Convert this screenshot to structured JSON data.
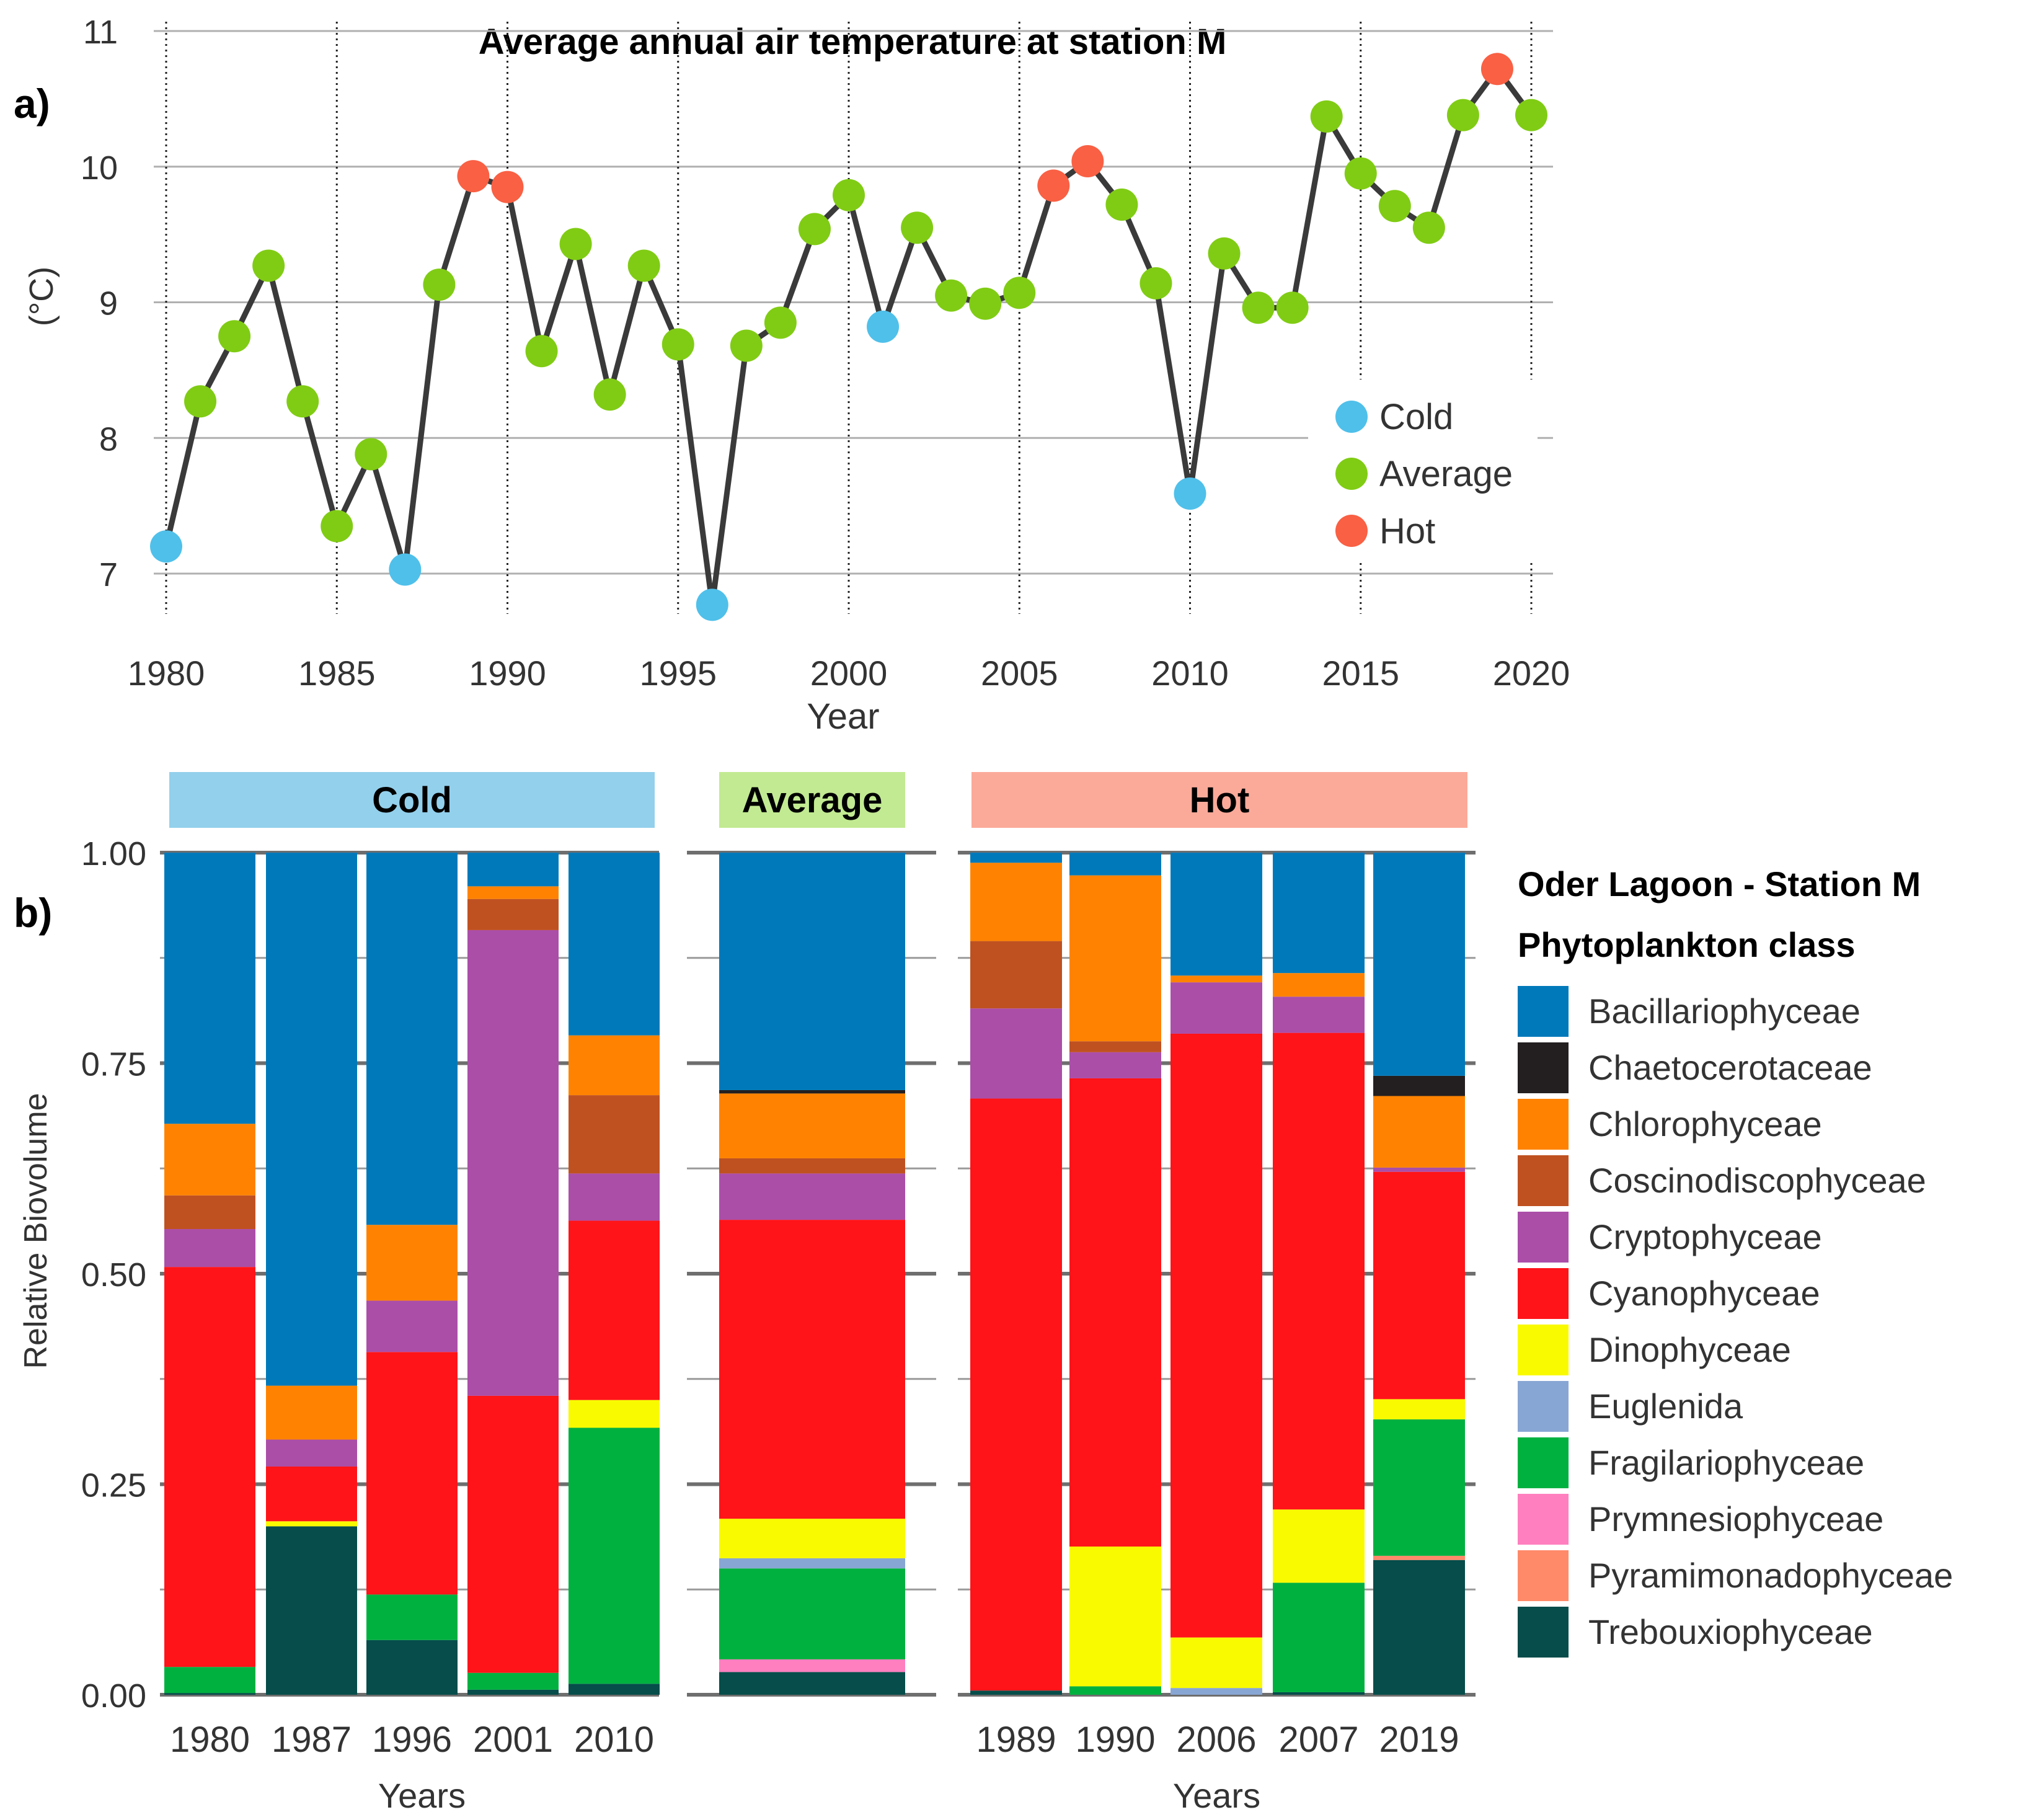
{
  "colors": {
    "Cold": "#4fc0ea",
    "Average": "#80cc14",
    "Hot": "#f96044",
    "line": "#3a3a3a",
    "grid": "#b0b0b0",
    "strip_cold": "#93d0ec",
    "strip_average": "#c2ea92",
    "strip_hot": "#fbaa9a"
  },
  "chart_data": [
    {
      "type": "line",
      "panel_label": "a)",
      "title": "Average annual air temperature at station M",
      "xlabel": "Year",
      "ylabel": "(°C)",
      "xlim": [
        1980,
        2020
      ],
      "ylim": [
        7,
        11
      ],
      "x_ticks": [
        "1980",
        "1985",
        "1990",
        "1995",
        "2000",
        "2005",
        "2010",
        "2015",
        "2020"
      ],
      "y_ticks": [
        "7",
        "8",
        "9",
        "10",
        "11"
      ],
      "legend_position": "right",
      "legend": [
        "Cold",
        "Average",
        "Hot"
      ],
      "points": [
        {
          "year": 1980,
          "temp": 7.2,
          "category": "Cold"
        },
        {
          "year": 1981,
          "temp": 8.27,
          "category": "Average"
        },
        {
          "year": 1982,
          "temp": 8.75,
          "category": "Average"
        },
        {
          "year": 1983,
          "temp": 9.27,
          "category": "Average"
        },
        {
          "year": 1984,
          "temp": 8.27,
          "category": "Average"
        },
        {
          "year": 1985,
          "temp": 7.35,
          "category": "Average"
        },
        {
          "year": 1986,
          "temp": 7.88,
          "category": "Average"
        },
        {
          "year": 1987,
          "temp": 7.03,
          "category": "Cold"
        },
        {
          "year": 1988,
          "temp": 9.13,
          "category": "Average"
        },
        {
          "year": 1989,
          "temp": 9.93,
          "category": "Hot"
        },
        {
          "year": 1990,
          "temp": 9.85,
          "category": "Hot"
        },
        {
          "year": 1991,
          "temp": 8.64,
          "category": "Average"
        },
        {
          "year": 1992,
          "temp": 9.43,
          "category": "Average"
        },
        {
          "year": 1993,
          "temp": 8.32,
          "category": "Average"
        },
        {
          "year": 1994,
          "temp": 9.27,
          "category": "Average"
        },
        {
          "year": 1995,
          "temp": 8.69,
          "category": "Average"
        },
        {
          "year": 1996,
          "temp": 6.77,
          "category": "Cold"
        },
        {
          "year": 1997,
          "temp": 8.68,
          "category": "Average"
        },
        {
          "year": 1998,
          "temp": 8.85,
          "category": "Average"
        },
        {
          "year": 1999,
          "temp": 9.54,
          "category": "Average"
        },
        {
          "year": 2000,
          "temp": 9.79,
          "category": "Average"
        },
        {
          "year": 2001,
          "temp": 8.82,
          "category": "Cold"
        },
        {
          "year": 2002,
          "temp": 9.55,
          "category": "Average"
        },
        {
          "year": 2003,
          "temp": 9.05,
          "category": "Average"
        },
        {
          "year": 2004,
          "temp": 8.99,
          "category": "Average"
        },
        {
          "year": 2005,
          "temp": 9.07,
          "category": "Average"
        },
        {
          "year": 2006,
          "temp": 9.86,
          "category": "Hot"
        },
        {
          "year": 2007,
          "temp": 10.04,
          "category": "Hot"
        },
        {
          "year": 2008,
          "temp": 9.72,
          "category": "Average"
        },
        {
          "year": 2009,
          "temp": 9.14,
          "category": "Average"
        },
        {
          "year": 2010,
          "temp": 7.59,
          "category": "Cold"
        },
        {
          "year": 2011,
          "temp": 9.36,
          "category": "Average"
        },
        {
          "year": 2012,
          "temp": 8.96,
          "category": "Average"
        },
        {
          "year": 2013,
          "temp": 8.96,
          "category": "Average"
        },
        {
          "year": 2014,
          "temp": 10.37,
          "category": "Average"
        },
        {
          "year": 2015,
          "temp": 9.95,
          "category": "Average"
        },
        {
          "year": 2016,
          "temp": 9.71,
          "category": "Average"
        },
        {
          "year": 2017,
          "temp": 9.55,
          "category": "Average"
        },
        {
          "year": 2018,
          "temp": 10.38,
          "category": "Average"
        },
        {
          "year": 2019,
          "temp": 10.72,
          "category": "Hot"
        },
        {
          "year": 2020,
          "temp": 10.38,
          "category": "Average"
        }
      ]
    },
    {
      "type": "bar",
      "stacked": true,
      "panel_label": "b)",
      "ylabel": "Relative Biovolume",
      "xlabel": "Years",
      "ylim": [
        0,
        1
      ],
      "y_ticks": [
        "0.00",
        "0.25",
        "0.50",
        "0.75",
        "1.00"
      ],
      "legend_title_1": "Oder Lagoon - Station M",
      "legend_title_2": "Phytoplankton class",
      "legend_position": "right",
      "classes": [
        {
          "name": "Trebouxiophyceae",
          "color": "#064d4b"
        },
        {
          "name": "Pyramimonadophyceae",
          "color": "#ff8a6a"
        },
        {
          "name": "Prymnesiophyceae",
          "color": "#ff7fbf"
        },
        {
          "name": "Fragilariophyceae",
          "color": "#00b140"
        },
        {
          "name": "Euglenida",
          "color": "#88a6d4"
        },
        {
          "name": "Dinophyceae",
          "color": "#f9f900"
        },
        {
          "name": "Cyanophyceae",
          "color": "#ff1419"
        },
        {
          "name": "Cryptophyceae",
          "color": "#ab4ea8"
        },
        {
          "name": "Coscinodiscophyceae",
          "color": "#bf5121"
        },
        {
          "name": "Chlorophyceae",
          "color": "#ff8300"
        },
        {
          "name": "Chaetocerotaceae",
          "color": "#231f20"
        },
        {
          "name": "Bacillariophyceae",
          "color": "#0079ba"
        }
      ],
      "legend_order": [
        "Bacillariophyceae",
        "Chaetocerotaceae",
        "Chlorophyceae",
        "Coscinodiscophyceae",
        "Cryptophyceae",
        "Cyanophyceae",
        "Dinophyceae",
        "Euglenida",
        "Fragilariophyceae",
        "Prymnesiophyceae",
        "Pyramimonadophyceae",
        "Trebouxiophyceae"
      ],
      "panels": [
        {
          "label": "Cold",
          "xlabel": "Years",
          "bars": [
            {
              "year": "1980",
              "values": [
                0.002,
                0.0,
                0.0,
                0.031,
                0.0,
                0.0,
                0.475,
                0.045,
                0.04,
                0.085,
                0.0,
                0.322
              ]
            },
            {
              "year": "1987",
              "values": [
                0.2,
                0.0,
                0.0,
                0.0,
                0.0,
                0.006,
                0.065,
                0.032,
                0.0,
                0.064,
                0.0,
                0.633
              ]
            },
            {
              "year": "1996",
              "values": [
                0.065,
                0.0,
                0.0,
                0.054,
                0.0,
                0.0,
                0.288,
                0.061,
                0.0,
                0.09,
                0.0,
                0.442
              ]
            },
            {
              "year": "2001",
              "values": [
                0.006,
                0.0,
                0.0,
                0.02,
                0.0,
                0.0,
                0.329,
                0.553,
                0.037,
                0.015,
                0.0,
                0.04
              ]
            },
            {
              "year": "2010",
              "values": [
                0.013,
                0.0,
                0.0,
                0.304,
                0.0,
                0.033,
                0.213,
                0.056,
                0.093,
                0.071,
                0.0,
                0.217
              ]
            }
          ]
        },
        {
          "label": "Average",
          "xlabel": "",
          "bars": [
            {
              "year": "",
              "values": [
                0.027,
                0.0,
                0.015,
                0.108,
                0.012,
                0.047,
                0.355,
                0.055,
                0.018,
                0.077,
                0.004,
                0.282
              ]
            }
          ]
        },
        {
          "label": "Hot",
          "xlabel": "Years",
          "bars": [
            {
              "year": "1989",
              "values": [
                0.005,
                0.0,
                0.0,
                0.0,
                0.0,
                0.0,
                0.703,
                0.107,
                0.08,
                0.093,
                0.0,
                0.012
              ]
            },
            {
              "year": "1990",
              "values": [
                0.0,
                0.0,
                0.0,
                0.01,
                0.0,
                0.166,
                0.556,
                0.031,
                0.013,
                0.197,
                0.0,
                0.027
              ]
            },
            {
              "year": "2006",
              "values": [
                0.0,
                0.0,
                0.0,
                0.0,
                0.008,
                0.06,
                0.717,
                0.061,
                0.0,
                0.008,
                0.0,
                0.146
              ]
            },
            {
              "year": "2007",
              "values": [
                0.003,
                0.0,
                0.0,
                0.13,
                0.0,
                0.087,
                0.566,
                0.043,
                0.0,
                0.028,
                0.0,
                0.143
              ]
            },
            {
              "year": "2019",
              "values": [
                0.16,
                0.005,
                0.0,
                0.162,
                0.0,
                0.024,
                0.27,
                0.005,
                0.0,
                0.085,
                0.024,
                0.265
              ]
            }
          ]
        }
      ]
    }
  ]
}
